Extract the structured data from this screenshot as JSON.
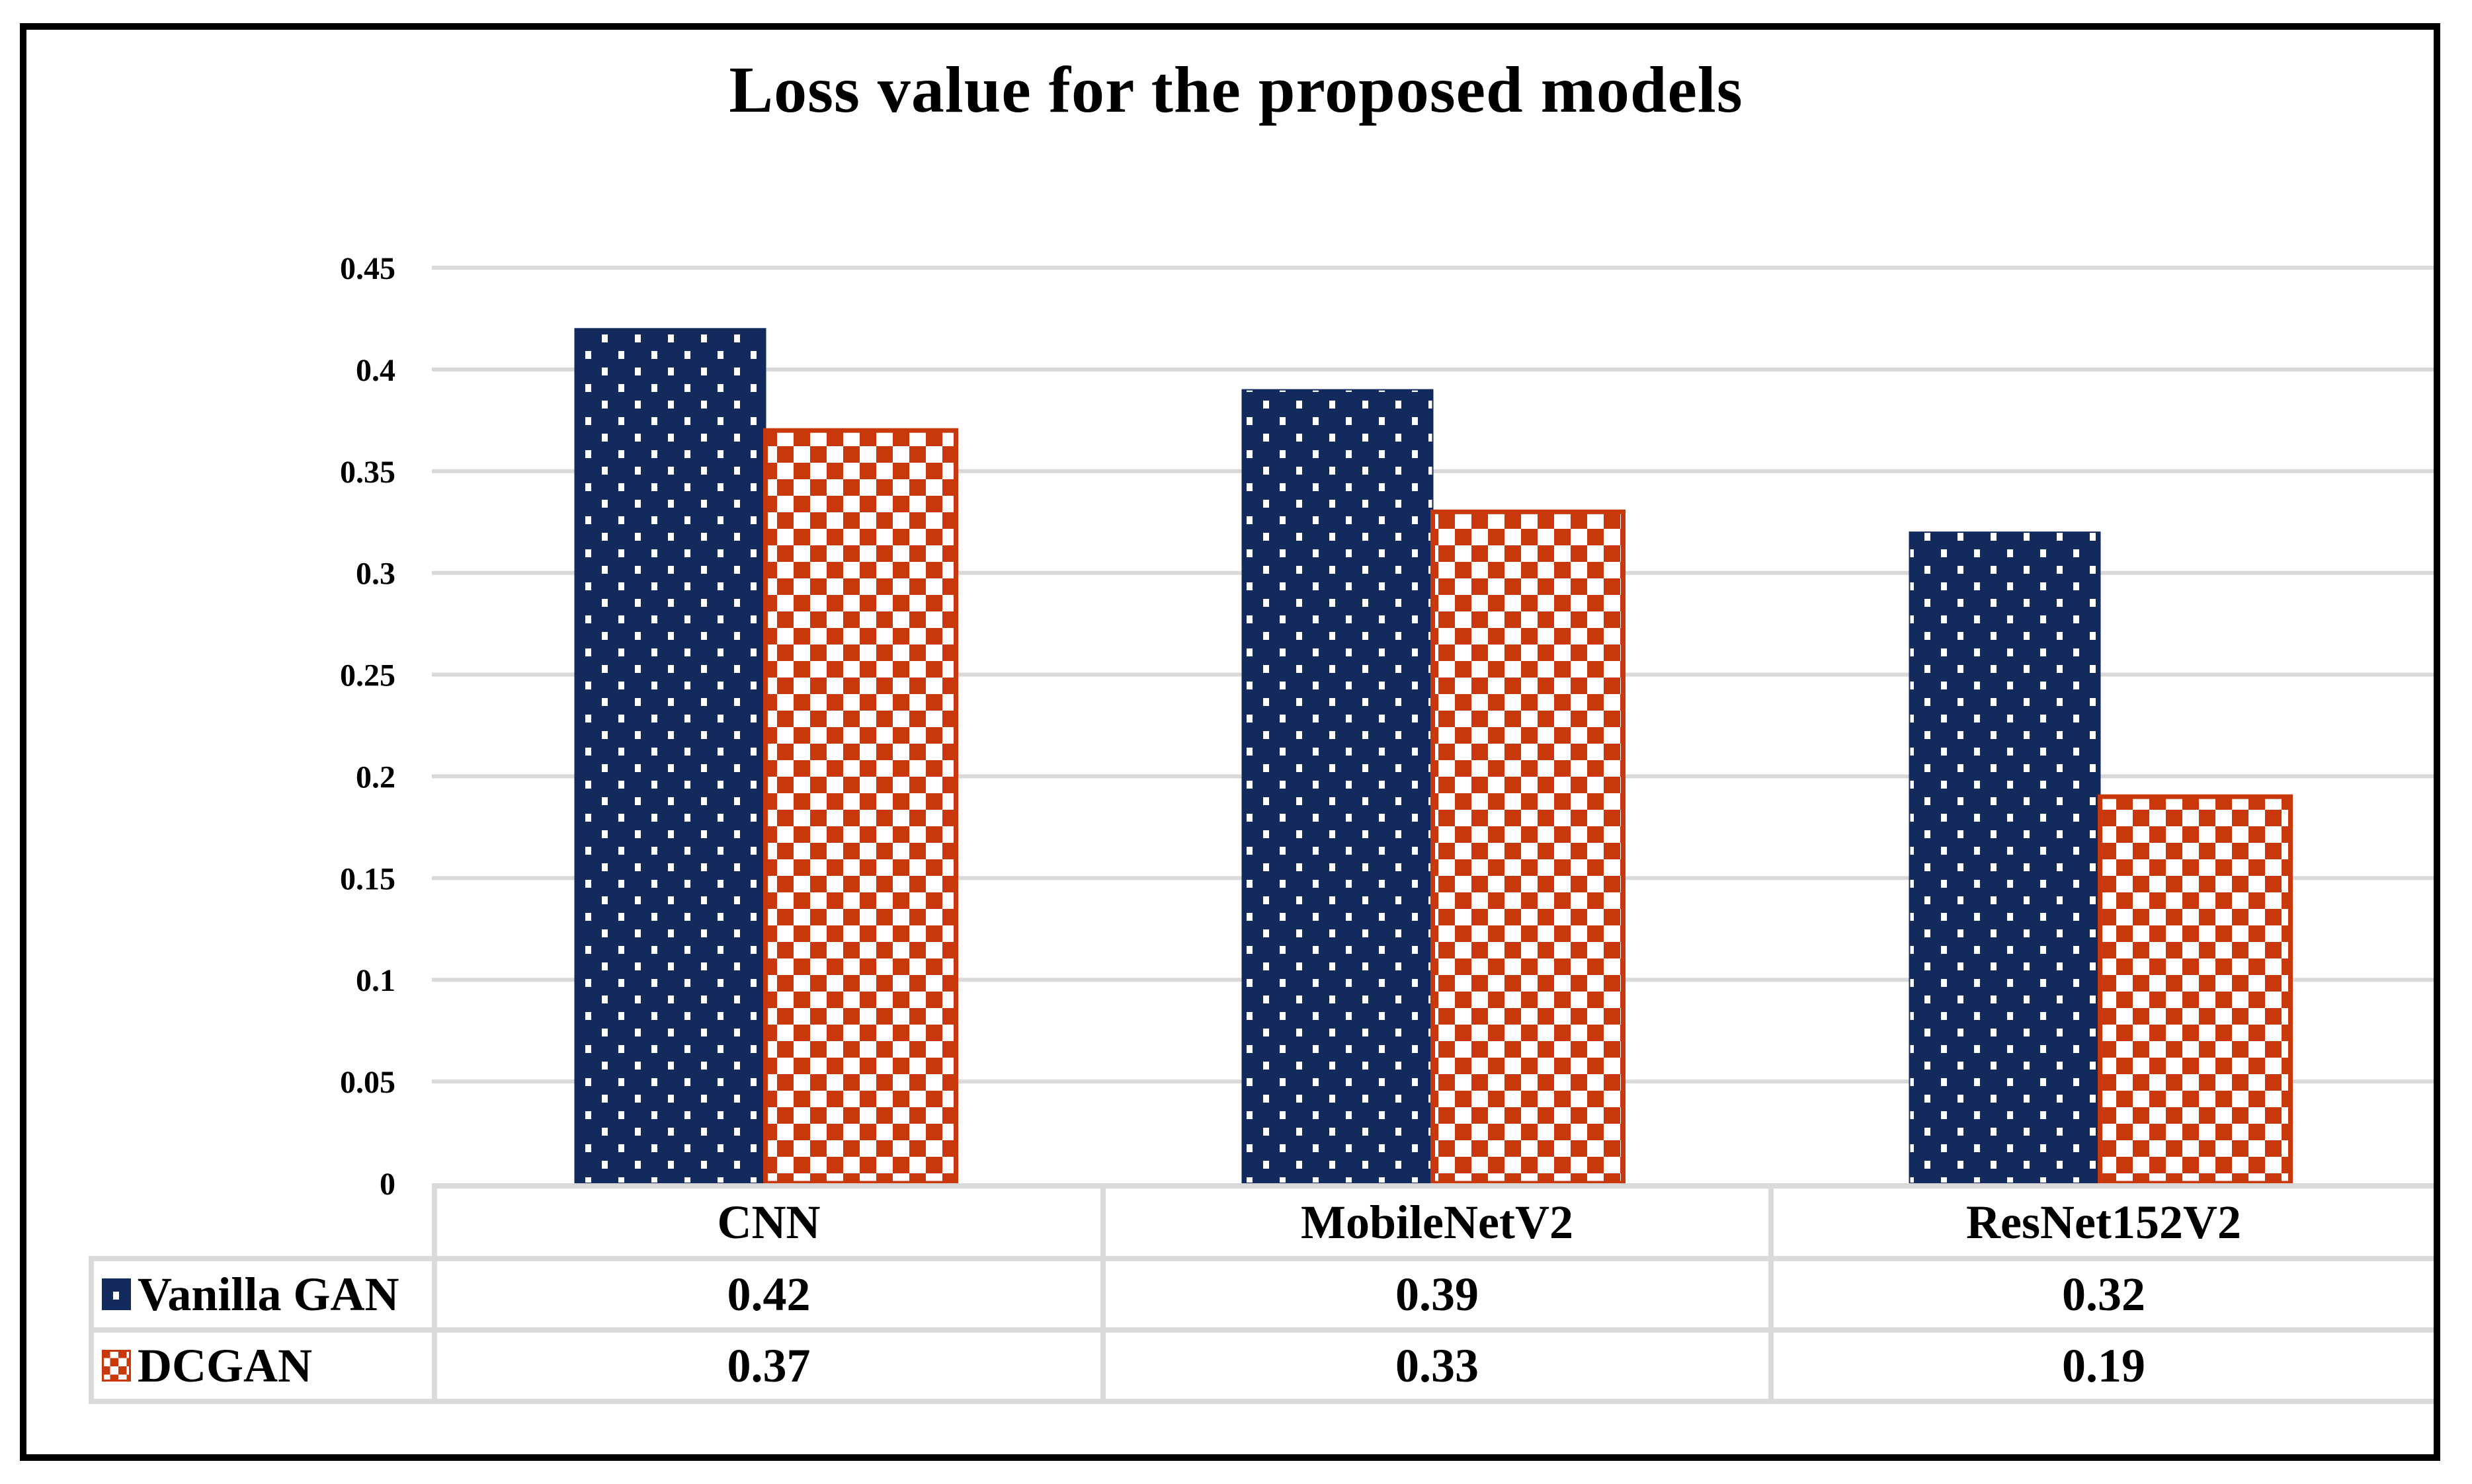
{
  "frame": {
    "border_color": "#000000"
  },
  "chart_data": {
    "type": "bar",
    "title": "Loss value for the proposed models",
    "categories": [
      "CNN",
      "MobileNetV2",
      "ResNet152V2"
    ],
    "series": [
      {
        "name": "Vanilla GAN",
        "values": [
          0.42,
          0.39,
          0.32
        ],
        "color": "#122A5C",
        "pattern": "dots",
        "pattern_fg": "#FFFFFF"
      },
      {
        "name": "DCGAN",
        "values": [
          0.37,
          0.33,
          0.19
        ],
        "color": "#C8380A",
        "pattern": "checker",
        "pattern_fg": "#FFFFFF"
      }
    ],
    "table_values": [
      [
        "0.42",
        "0.39",
        "0.32"
      ],
      [
        "0.37",
        "0.33",
        "0.19"
      ]
    ],
    "ylim": [
      0,
      0.45
    ],
    "ytick_step": 0.05,
    "ytick_labels": [
      "0",
      "0.05",
      "0.1",
      "0.15",
      "0.2",
      "0.25",
      "0.3",
      "0.35",
      "0.4",
      "0.45"
    ],
    "grid": true,
    "gridline_color": "#D9D9D9",
    "axis_label_color": "#000000",
    "legend_position": "table-left"
  }
}
